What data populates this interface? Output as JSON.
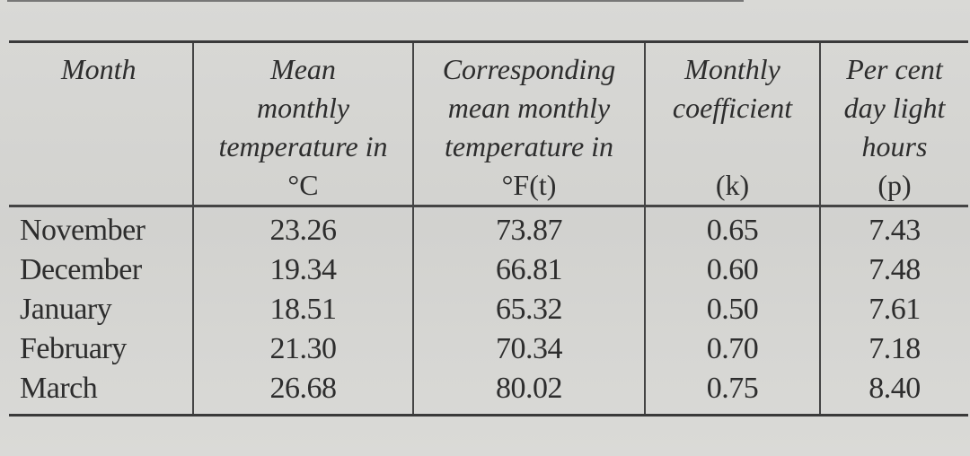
{
  "table": {
    "headers": {
      "month": "Month",
      "mean_temp_c": {
        "lines": [
          "Mean",
          "monthly",
          "temperature in"
        ],
        "unit": "°C"
      },
      "mean_temp_f": {
        "lines": [
          "Corresponding",
          "mean monthly",
          "temperature in"
        ],
        "unit": "°F(t)"
      },
      "coefficient": {
        "lines": [
          "Monthly",
          "coefficient"
        ],
        "unit": "(k)"
      },
      "daylight": {
        "lines": [
          "Per cent",
          "day light",
          "hours"
        ],
        "unit": "(p)"
      }
    },
    "rows": [
      [
        "November",
        "23.26",
        "73.87",
        "0.65",
        "7.43"
      ],
      [
        "December",
        "19.34",
        "66.81",
        "0.60",
        "7.48"
      ],
      [
        "January",
        "18.51",
        "65.32",
        "0.50",
        "7.61"
      ],
      [
        "February",
        "21.30",
        "70.34",
        "0.70",
        "7.18"
      ],
      [
        "March",
        "26.68",
        "80.02",
        "0.75",
        "8.40"
      ]
    ]
  }
}
